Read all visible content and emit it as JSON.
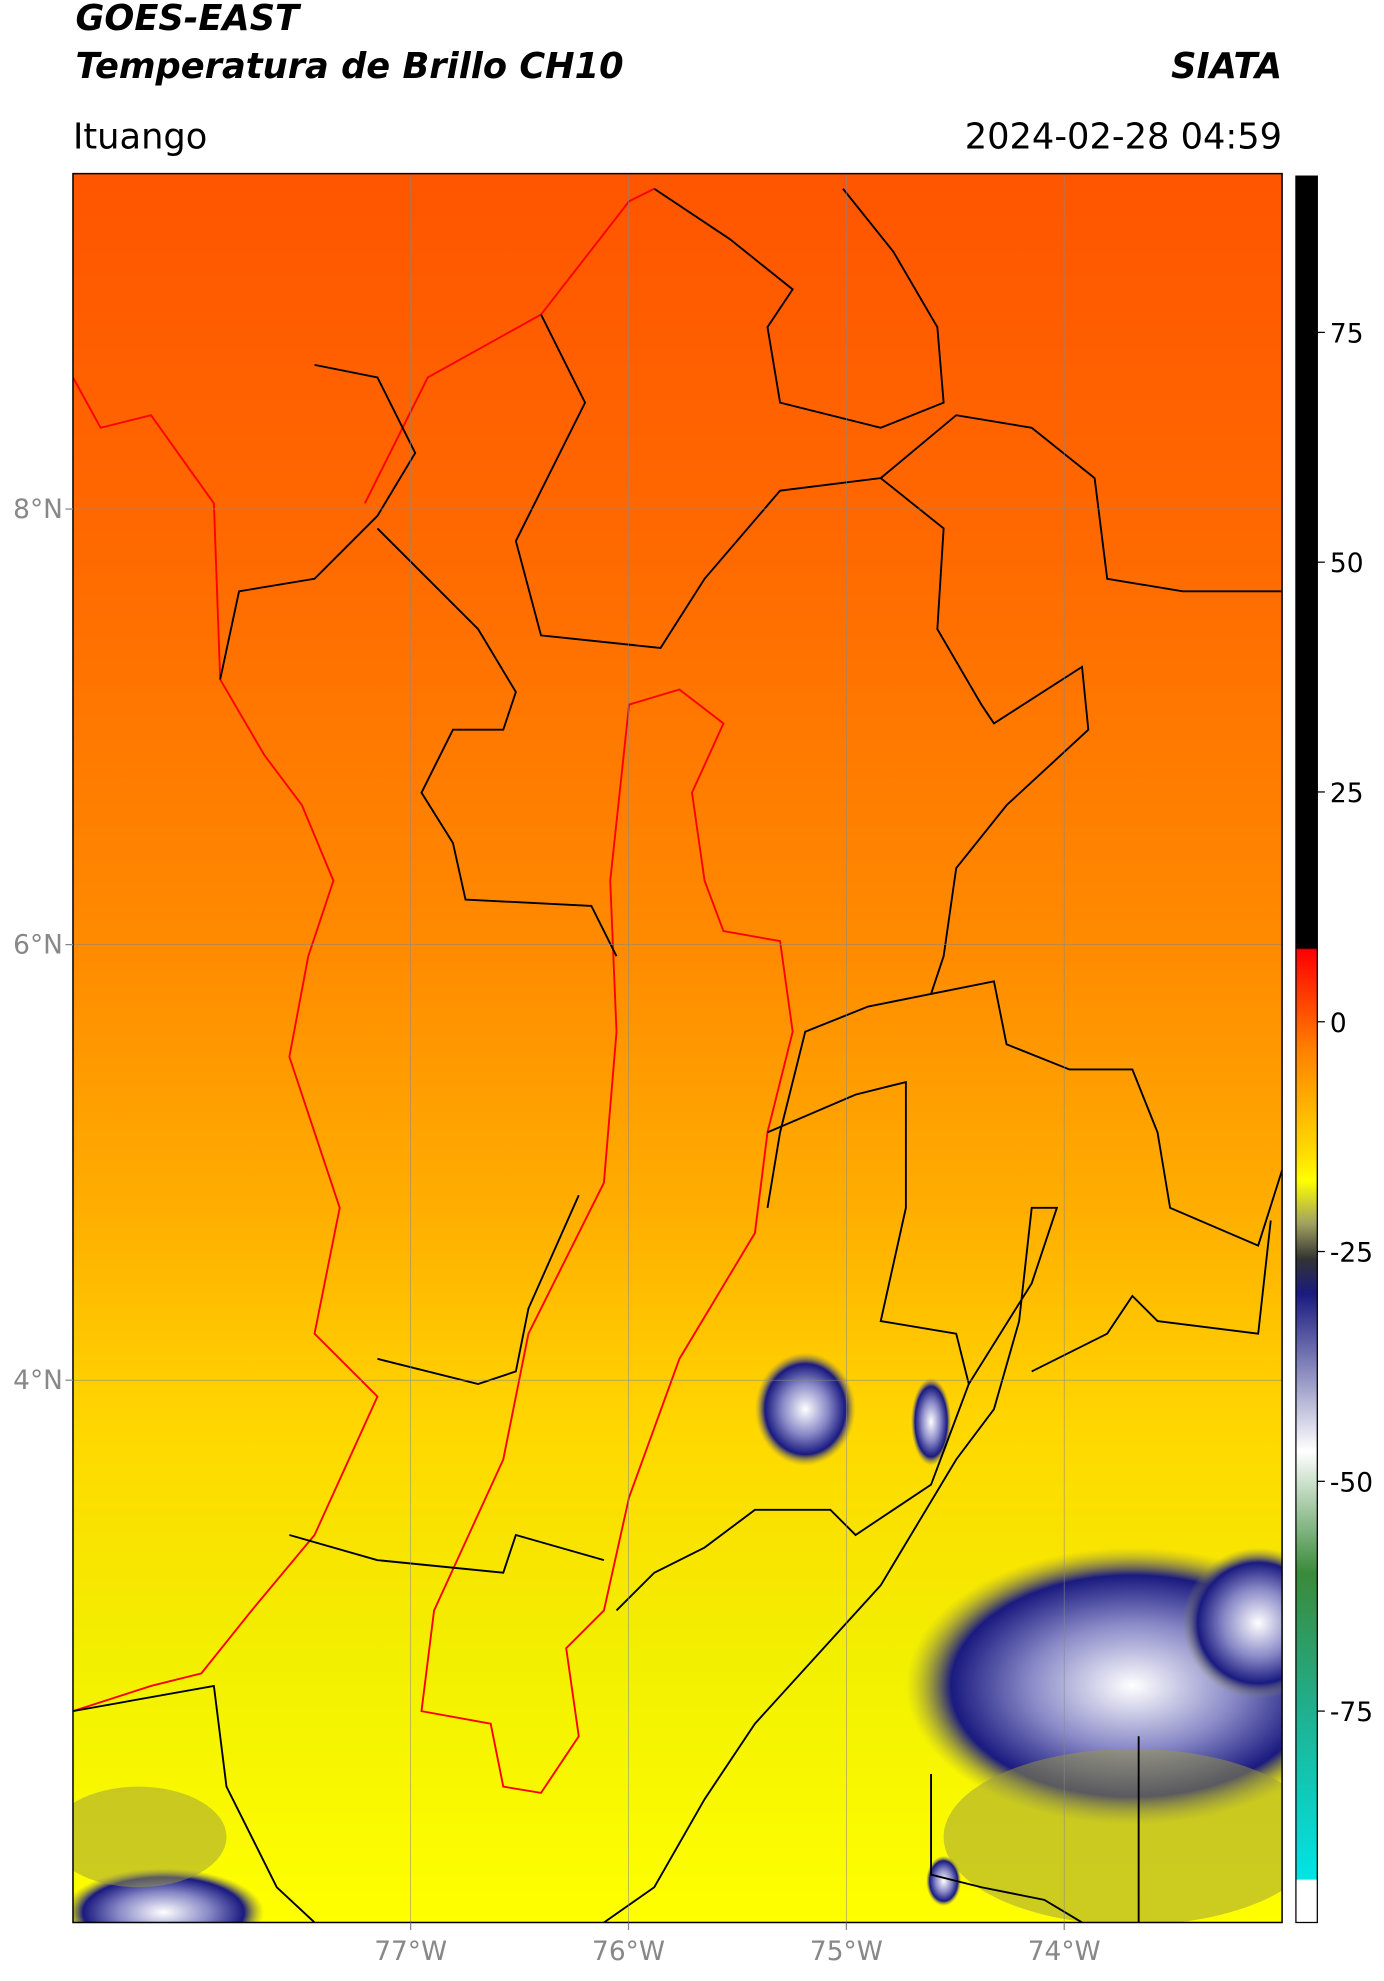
{
  "header": {
    "satellite": "GOES-EAST",
    "product": "Temperatura de Brillo CH10",
    "agency": "SIATA",
    "region": "Ituango",
    "datetime": "2024-02-28 04:59"
  },
  "map": {
    "lon_range": [
      -78.55,
      -73.0
    ],
    "lat_range": [
      1.51,
      9.54
    ],
    "lon_ticks": [
      {
        "value": -77,
        "label": "77°W"
      },
      {
        "value": -76,
        "label": "76°W"
      },
      {
        "value": -75,
        "label": "75°W"
      },
      {
        "value": -74,
        "label": "74°W"
      }
    ],
    "lat_ticks": [
      {
        "value": 8,
        "label": "8°N"
      },
      {
        "value": 6,
        "label": "6°N"
      },
      {
        "value": 4,
        "label": "4°N"
      }
    ]
  },
  "colorbar": {
    "range": [
      -98,
      92
    ],
    "ticks": [
      75,
      50,
      25,
      0,
      -25,
      -50,
      -75
    ]
  }
}
